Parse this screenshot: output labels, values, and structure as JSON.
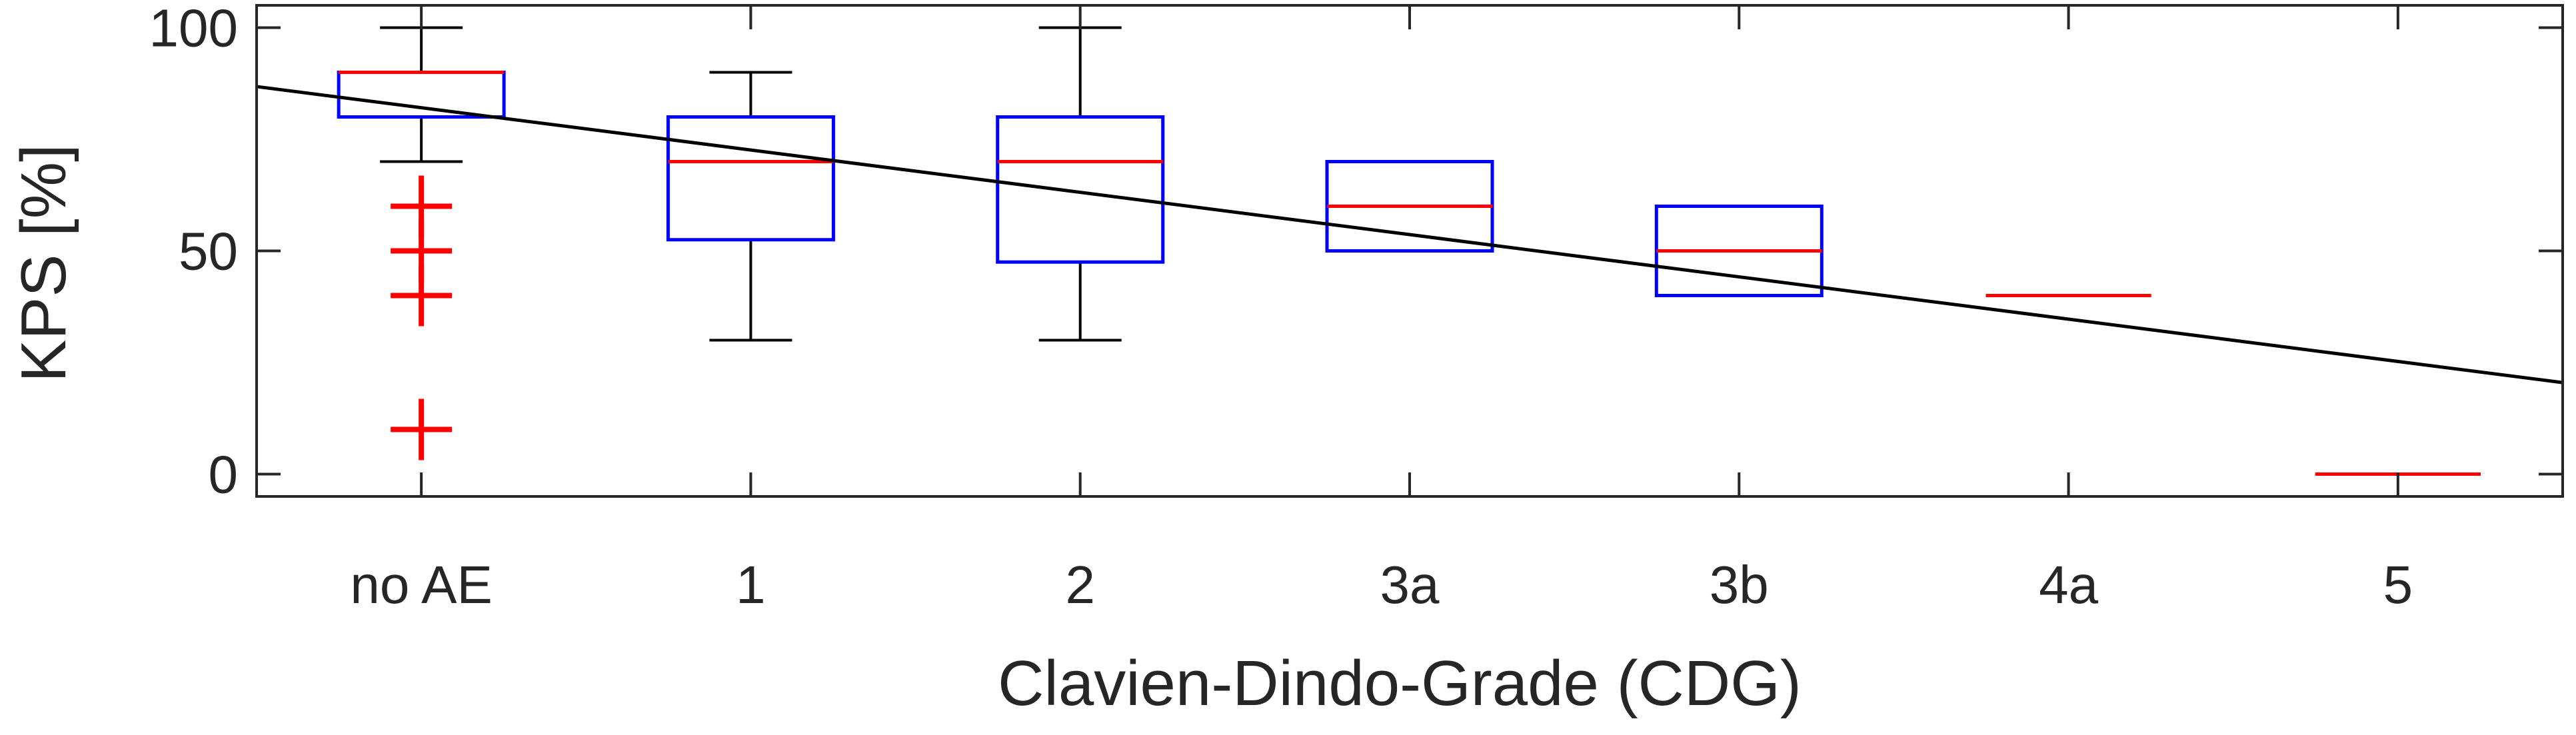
{
  "chart_data": {
    "type": "box",
    "title": "",
    "xlabel": "Clavien-Dindo-Grade (CDG)",
    "ylabel": "KPS [%]",
    "ylim": [
      -5,
      105
    ],
    "yticks": [
      0,
      50,
      100
    ],
    "categories": [
      "no AE",
      "1",
      "2",
      "3a",
      "3b",
      "4a",
      "5"
    ],
    "boxes": [
      {
        "category": "no AE",
        "whisker_low": 70,
        "q1": 80,
        "median": 90,
        "q3": 90,
        "whisker_high": 100,
        "outliers": [
          60,
          50,
          40,
          10
        ]
      },
      {
        "category": "1",
        "whisker_low": 30,
        "q1": 52.5,
        "median": 70,
        "q3": 80,
        "whisker_high": 90,
        "outliers": []
      },
      {
        "category": "2",
        "whisker_low": 30,
        "q1": 47.5,
        "median": 70,
        "q3": 80,
        "whisker_high": 100,
        "outliers": []
      },
      {
        "category": "3a",
        "whisker_low": 50,
        "q1": 50,
        "median": 60,
        "q3": 70,
        "whisker_high": 70,
        "outliers": []
      },
      {
        "category": "3b",
        "whisker_low": 40,
        "q1": 40,
        "median": 50,
        "q3": 60,
        "whisker_high": 60,
        "outliers": []
      },
      {
        "category": "4a",
        "whisker_low": 40,
        "q1": 40,
        "median": 40,
        "q3": 40,
        "whisker_high": 40,
        "outliers": []
      },
      {
        "category": "5",
        "whisker_low": 0,
        "q1": 0,
        "median": 0,
        "q3": 0,
        "whisker_high": 0,
        "outliers": []
      }
    ],
    "trend_line": {
      "x": [
        0.5,
        7.5
      ],
      "y": [
        86.8,
        20.5
      ]
    },
    "grid": false,
    "colors": {
      "box": "#0000ff",
      "median": "#ff0000",
      "outlier": "#ff0000",
      "whisker": "#000000",
      "trend": "#000000",
      "axis": "#262626"
    }
  }
}
